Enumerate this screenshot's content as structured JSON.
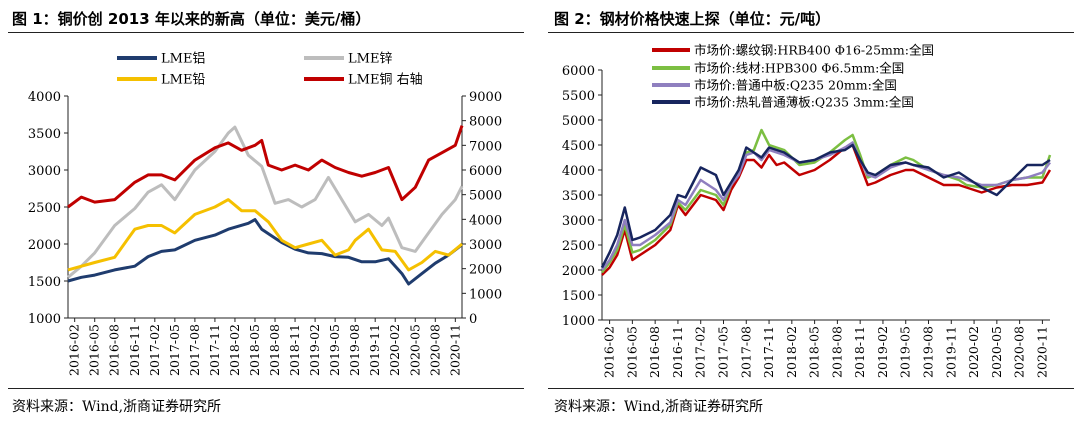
{
  "panels": [
    {
      "title": "图 1：铜价创 2013 年以来的新高（单位：美元/桶）",
      "source": "资料来源：Wind,浙商证券研究所"
    },
    {
      "title": "图 2：钢材价格快速上探（单位：元/吨）",
      "source": "资料来源：Wind,浙商证券研究所"
    }
  ],
  "chart_data": [
    {
      "type": "line",
      "title": "",
      "x_ticks": [
        "2016-02",
        "2016-05",
        "2016-08",
        "2016-11",
        "2017-02",
        "2017-05",
        "2017-08",
        "2017-11",
        "2018-02",
        "2018-05",
        "2018-08",
        "2018-11",
        "2019-02",
        "2019-05",
        "2019-08",
        "2019-11",
        "2020-02",
        "2020-05",
        "2020-08",
        "2020-11"
      ],
      "x_range": [
        "2016-01",
        "2020-12"
      ],
      "y_left": {
        "ticks": [
          "1000",
          "1500",
          "2000",
          "2500",
          "3000",
          "3500",
          "4000"
        ],
        "range": [
          1000,
          4000
        ]
      },
      "y_right": {
        "ticks": [
          "0",
          "1000",
          "2000",
          "3000",
          "4000",
          "5000",
          "6000",
          "7000",
          "8000",
          "9000"
        ],
        "range": [
          0,
          9000
        ]
      },
      "legend_position": "top",
      "colors": {
        "LME铝": "#1f3c6e",
        "LME锌": "#bdbdbd",
        "LME铅": "#f5c000",
        "LME铜 右轴": "#c00000"
      },
      "series": [
        {
          "name": "LME铝",
          "axis": "left",
          "x": [
            "2016-01",
            "2016-03",
            "2016-05",
            "2016-08",
            "2016-11",
            "2017-01",
            "2017-03",
            "2017-05",
            "2017-08",
            "2017-11",
            "2018-01",
            "2018-04",
            "2018-05",
            "2018-06",
            "2018-08",
            "2018-09",
            "2018-11",
            "2019-01",
            "2019-03",
            "2019-05",
            "2019-07",
            "2019-09",
            "2019-11",
            "2020-01",
            "2020-03",
            "2020-04",
            "2020-06",
            "2020-08",
            "2020-10",
            "2020-12"
          ],
          "y": [
            1500,
            1550,
            1580,
            1650,
            1700,
            1830,
            1900,
            1920,
            2050,
            2120,
            2200,
            2280,
            2330,
            2200,
            2080,
            2020,
            1930,
            1880,
            1870,
            1830,
            1820,
            1760,
            1760,
            1800,
            1600,
            1460,
            1600,
            1740,
            1850,
            1990
          ]
        },
        {
          "name": "LME锌",
          "axis": "left",
          "x": [
            "2016-01",
            "2016-03",
            "2016-05",
            "2016-08",
            "2016-11",
            "2017-01",
            "2017-03",
            "2017-05",
            "2017-08",
            "2017-11",
            "2018-01",
            "2018-02",
            "2018-04",
            "2018-06",
            "2018-08",
            "2018-10",
            "2018-12",
            "2019-02",
            "2019-04",
            "2019-06",
            "2019-08",
            "2019-10",
            "2019-12",
            "2020-01",
            "2020-03",
            "2020-05",
            "2020-07",
            "2020-09",
            "2020-11",
            "2020-12"
          ],
          "y": [
            1550,
            1700,
            1880,
            2250,
            2480,
            2700,
            2800,
            2600,
            3000,
            3250,
            3500,
            3580,
            3200,
            3050,
            2550,
            2600,
            2500,
            2600,
            2900,
            2600,
            2300,
            2400,
            2250,
            2350,
            1950,
            1900,
            2150,
            2400,
            2600,
            2780
          ]
        },
        {
          "name": "LME铅",
          "axis": "left",
          "x": [
            "2016-01",
            "2016-03",
            "2016-05",
            "2016-08",
            "2016-11",
            "2017-01",
            "2017-03",
            "2017-05",
            "2017-08",
            "2017-11",
            "2018-01",
            "2018-03",
            "2018-05",
            "2018-07",
            "2018-09",
            "2018-11",
            "2019-01",
            "2019-03",
            "2019-05",
            "2019-07",
            "2019-08",
            "2019-10",
            "2019-12",
            "2020-02",
            "2020-04",
            "2020-06",
            "2020-08",
            "2020-10",
            "2020-12"
          ],
          "y": [
            1650,
            1700,
            1750,
            1820,
            2200,
            2250,
            2250,
            2150,
            2400,
            2500,
            2600,
            2450,
            2450,
            2300,
            2050,
            1950,
            2000,
            2050,
            1850,
            1920,
            2050,
            2200,
            1920,
            1900,
            1650,
            1750,
            1900,
            1850,
            2000
          ]
        },
        {
          "name": "LME铜 右轴",
          "axis": "right",
          "x": [
            "2016-01",
            "2016-03",
            "2016-05",
            "2016-08",
            "2016-11",
            "2017-01",
            "2017-03",
            "2017-05",
            "2017-08",
            "2017-11",
            "2018-01",
            "2018-03",
            "2018-05",
            "2018-06",
            "2018-07",
            "2018-09",
            "2018-11",
            "2019-01",
            "2019-03",
            "2019-05",
            "2019-07",
            "2019-09",
            "2019-11",
            "2020-01",
            "2020-03",
            "2020-05",
            "2020-07",
            "2020-09",
            "2020-11",
            "2020-12"
          ],
          "y": [
            4500,
            4900,
            4700,
            4800,
            5500,
            5800,
            5800,
            5600,
            6400,
            6900,
            7100,
            6800,
            7000,
            7200,
            6200,
            6000,
            6200,
            6000,
            6400,
            6100,
            5900,
            5750,
            5900,
            6100,
            4800,
            5300,
            6400,
            6700,
            7000,
            7800
          ]
        }
      ]
    },
    {
      "type": "line",
      "title": "",
      "x_ticks": [
        "2016-02",
        "2016-05",
        "2016-08",
        "2016-11",
        "2017-02",
        "2017-05",
        "2017-08",
        "2017-11",
        "2018-02",
        "2018-05",
        "2018-08",
        "2018-11",
        "2019-02",
        "2019-05",
        "2019-08",
        "2019-11",
        "2020-02",
        "2020-05",
        "2020-08",
        "2020-11"
      ],
      "x_range": [
        "2016-01",
        "2020-12"
      ],
      "y": {
        "ticks": [
          "1000",
          "1500",
          "2000",
          "2500",
          "3000",
          "3500",
          "4000",
          "4500",
          "5000",
          "5500",
          "6000"
        ],
        "range": [
          1000,
          6000
        ]
      },
      "legend_position": "top",
      "colors": {
        "s1": "#c00000",
        "s2": "#7cbf42",
        "s3": "#8f7fbf",
        "s4": "#17255e"
      },
      "series": [
        {
          "name": "市场价:螺纹钢:HRB400 Φ16-25mm:全国",
          "x": [
            "2016-01",
            "2016-02",
            "2016-03",
            "2016-04",
            "2016-05",
            "2016-06",
            "2016-08",
            "2016-10",
            "2016-11",
            "2016-12",
            "2017-02",
            "2017-04",
            "2017-05",
            "2017-06",
            "2017-07",
            "2017-08",
            "2017-09",
            "2017-10",
            "2017-11",
            "2017-12",
            "2018-01",
            "2018-03",
            "2018-05",
            "2018-07",
            "2018-09",
            "2018-10",
            "2018-11",
            "2018-12",
            "2019-01",
            "2019-03",
            "2019-05",
            "2019-06",
            "2019-08",
            "2019-10",
            "2019-12",
            "2020-01",
            "2020-03",
            "2020-05",
            "2020-07",
            "2020-09",
            "2020-11",
            "2020-12"
          ],
          "y": [
            1900,
            2050,
            2300,
            2800,
            2200,
            2300,
            2500,
            2800,
            3300,
            3100,
            3500,
            3400,
            3200,
            3600,
            3850,
            4200,
            4200,
            4050,
            4300,
            4100,
            4150,
            3900,
            4000,
            4200,
            4450,
            4500,
            4100,
            3700,
            3750,
            3900,
            4000,
            4000,
            3850,
            3700,
            3700,
            3650,
            3550,
            3650,
            3700,
            3700,
            3750,
            4000
          ]
        },
        {
          "name": "市场价:线材:HPB300 Φ6.5mm:全国",
          "x": [
            "2016-01",
            "2016-02",
            "2016-03",
            "2016-04",
            "2016-05",
            "2016-06",
            "2016-08",
            "2016-10",
            "2016-11",
            "2016-12",
            "2017-02",
            "2017-04",
            "2017-05",
            "2017-06",
            "2017-07",
            "2017-08",
            "2017-09",
            "2017-10",
            "2017-11",
            "2017-12",
            "2018-01",
            "2018-03",
            "2018-05",
            "2018-07",
            "2018-09",
            "2018-10",
            "2018-11",
            "2018-12",
            "2019-01",
            "2019-03",
            "2019-05",
            "2019-06",
            "2019-08",
            "2019-10",
            "2019-12",
            "2020-01",
            "2020-03",
            "2020-05",
            "2020-07",
            "2020-09",
            "2020-11",
            "2020-12"
          ],
          "y": [
            1950,
            2150,
            2400,
            2900,
            2350,
            2400,
            2600,
            2900,
            3350,
            3200,
            3600,
            3500,
            3300,
            3700,
            3950,
            4350,
            4400,
            4800,
            4500,
            4450,
            4400,
            4100,
            4150,
            4350,
            4600,
            4700,
            4300,
            3850,
            3900,
            4100,
            4250,
            4200,
            4000,
            3900,
            3800,
            3700,
            3650,
            3700,
            3800,
            3850,
            3850,
            4300
          ]
        },
        {
          "name": "市场价:普通中板:Q235 20mm:全国",
          "x": [
            "2016-01",
            "2016-02",
            "2016-03",
            "2016-04",
            "2016-05",
            "2016-06",
            "2016-08",
            "2016-10",
            "2016-11",
            "2016-12",
            "2017-02",
            "2017-04",
            "2017-05",
            "2017-06",
            "2017-07",
            "2017-08",
            "2017-09",
            "2017-10",
            "2017-11",
            "2017-12",
            "2018-01",
            "2018-03",
            "2018-05",
            "2018-07",
            "2018-09",
            "2018-10",
            "2018-11",
            "2018-12",
            "2019-01",
            "2019-03",
            "2019-05",
            "2019-06",
            "2019-08",
            "2019-10",
            "2019-12",
            "2020-01",
            "2020-03",
            "2020-05",
            "2020-07",
            "2020-09",
            "2020-11",
            "2020-12"
          ],
          "y": [
            2000,
            2200,
            2500,
            3000,
            2500,
            2500,
            2700,
            2950,
            3400,
            3300,
            3800,
            3600,
            3400,
            3700,
            3900,
            4300,
            4350,
            4200,
            4400,
            4350,
            4300,
            4150,
            4200,
            4300,
            4450,
            4550,
            4200,
            3900,
            3850,
            4050,
            4150,
            4100,
            4000,
            3900,
            3850,
            3800,
            3700,
            3700,
            3800,
            3850,
            3950,
            4150
          ]
        },
        {
          "name": "市场价:热轧普通薄板:Q235 3mm:全国",
          "x": [
            "2016-01",
            "2016-02",
            "2016-03",
            "2016-04",
            "2016-05",
            "2016-06",
            "2016-08",
            "2016-10",
            "2016-11",
            "2016-12",
            "2017-02",
            "2017-04",
            "2017-05",
            "2017-06",
            "2017-07",
            "2017-08",
            "2017-09",
            "2017-10",
            "2017-11",
            "2017-12",
            "2018-01",
            "2018-03",
            "2018-05",
            "2018-07",
            "2018-09",
            "2018-10",
            "2018-11",
            "2018-12",
            "2019-01",
            "2019-03",
            "2019-05",
            "2019-06",
            "2019-08",
            "2019-10",
            "2019-12",
            "2020-01",
            "2020-03",
            "2020-05",
            "2020-07",
            "2020-09",
            "2020-11",
            "2020-12"
          ],
          "y": [
            2050,
            2350,
            2700,
            3250,
            2600,
            2650,
            2800,
            3100,
            3500,
            3450,
            4050,
            3900,
            3500,
            3750,
            4000,
            4450,
            4350,
            4250,
            4450,
            4400,
            4350,
            4150,
            4200,
            4350,
            4400,
            4500,
            4200,
            3950,
            3900,
            4100,
            4150,
            4100,
            4050,
            3850,
            3950,
            3850,
            3650,
            3500,
            3800,
            4100,
            4100,
            4200
          ]
        }
      ]
    }
  ]
}
